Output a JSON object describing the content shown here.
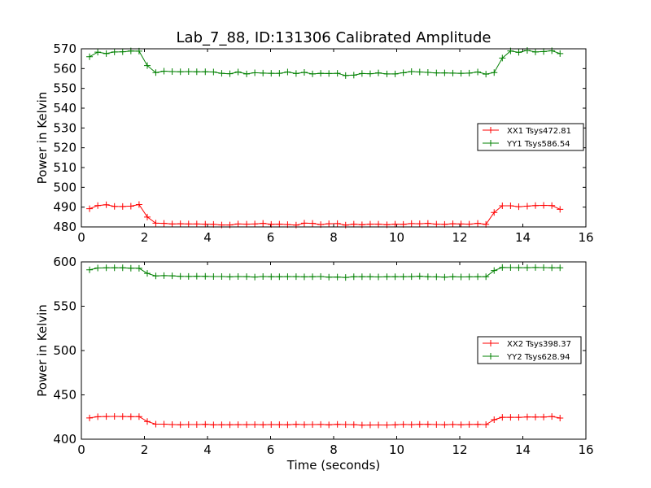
{
  "chart_data": [
    {
      "type": "line",
      "title": "Lab_7_88, ID:131306 Calibrated Amplitude",
      "xlabel": "",
      "ylabel": "Power in Kelvin",
      "xlim": [
        0,
        16
      ],
      "ylim": [
        480,
        570
      ],
      "xticks": [
        0,
        2,
        4,
        6,
        8,
        10,
        12,
        14,
        16
      ],
      "yticks": [
        480,
        490,
        500,
        510,
        520,
        530,
        540,
        550,
        560,
        570
      ],
      "grid": false,
      "legend_position": "right",
      "marker": "+",
      "x": [
        0.26,
        0.52,
        0.79,
        1.05,
        1.31,
        1.57,
        1.83,
        2.09,
        2.36,
        2.62,
        2.88,
        3.14,
        3.4,
        3.66,
        3.93,
        4.19,
        4.45,
        4.71,
        4.97,
        5.24,
        5.5,
        5.76,
        6.02,
        6.28,
        6.54,
        6.81,
        7.07,
        7.33,
        7.59,
        7.85,
        8.12,
        8.38,
        8.64,
        8.9,
        9.16,
        9.42,
        9.69,
        9.95,
        10.21,
        10.47,
        10.73,
        10.99,
        11.26,
        11.52,
        11.78,
        12.04,
        12.3,
        12.57,
        12.83,
        13.09,
        13.35,
        13.61,
        13.87,
        14.14,
        14.4,
        14.66,
        14.92,
        15.18
      ],
      "series": [
        {
          "name": "XX1 Tsys472.81",
          "color": "#ff0000",
          "values": [
            489.2,
            490.8,
            491.2,
            490.4,
            490.3,
            490.5,
            491.3,
            485.0,
            481.9,
            481.8,
            481.5,
            481.6,
            481.5,
            481.5,
            481.4,
            481.3,
            481.0,
            481.0,
            481.5,
            481.4,
            481.5,
            481.8,
            481.3,
            481.4,
            481.2,
            480.9,
            481.9,
            481.8,
            481.2,
            481.6,
            481.7,
            480.9,
            481.4,
            481.1,
            481.4,
            481.4,
            481.1,
            481.4,
            481.3,
            481.7,
            481.6,
            481.8,
            481.4,
            481.3,
            481.6,
            481.5,
            481.4,
            481.8,
            481.3,
            487.3,
            490.7,
            490.7,
            490.2,
            490.5,
            490.8,
            490.9,
            490.8,
            488.9
          ]
        },
        {
          "name": "YY1 Tsys586.54",
          "color": "#008000",
          "values": [
            566.0,
            568.3,
            567.6,
            568.4,
            568.5,
            568.9,
            568.8,
            561.5,
            558.0,
            558.7,
            558.5,
            558.4,
            558.5,
            558.4,
            558.4,
            558.3,
            557.6,
            557.4,
            558.3,
            557.3,
            557.9,
            557.7,
            557.6,
            557.6,
            558.3,
            557.5,
            558.1,
            557.3,
            557.6,
            557.5,
            557.6,
            556.5,
            556.7,
            557.5,
            557.4,
            557.8,
            557.3,
            557.3,
            557.9,
            558.5,
            558.3,
            558.1,
            557.8,
            557.8,
            557.7,
            557.6,
            557.7,
            558.3,
            557.2,
            558.0,
            565.3,
            568.9,
            568.2,
            569.2,
            568.4,
            568.6,
            569.0,
            567.6
          ]
        }
      ]
    },
    {
      "type": "line",
      "title": "",
      "xlabel": "Time (seconds)",
      "ylabel": "Power in Kelvin",
      "xlim": [
        0,
        16
      ],
      "ylim": [
        400,
        600
      ],
      "xticks": [
        0,
        2,
        4,
        6,
        8,
        10,
        12,
        14,
        16
      ],
      "yticks": [
        400,
        450,
        500,
        550,
        600
      ],
      "grid": false,
      "legend_position": "right",
      "marker": "+",
      "x": [
        0.26,
        0.52,
        0.79,
        1.05,
        1.31,
        1.57,
        1.83,
        2.09,
        2.36,
        2.62,
        2.88,
        3.14,
        3.4,
        3.66,
        3.93,
        4.19,
        4.45,
        4.71,
        4.97,
        5.24,
        5.5,
        5.76,
        6.02,
        6.28,
        6.54,
        6.81,
        7.07,
        7.33,
        7.59,
        7.85,
        8.12,
        8.38,
        8.64,
        8.9,
        9.16,
        9.42,
        9.69,
        9.95,
        10.21,
        10.47,
        10.73,
        10.99,
        11.26,
        11.52,
        11.78,
        12.04,
        12.3,
        12.57,
        12.83,
        13.09,
        13.35,
        13.61,
        13.87,
        14.14,
        14.4,
        14.66,
        14.92,
        15.18
      ],
      "series": [
        {
          "name": "XX2 Tsys398.37",
          "color": "#ff0000",
          "values": [
            424.0,
            425.3,
            425.6,
            425.7,
            425.6,
            425.4,
            425.5,
            420.0,
            417.0,
            417.0,
            416.5,
            416.3,
            416.5,
            416.5,
            416.8,
            416.2,
            416.3,
            416.3,
            416.4,
            416.4,
            416.5,
            416.3,
            416.5,
            416.4,
            416.3,
            416.7,
            416.4,
            416.5,
            416.6,
            416.2,
            416.8,
            416.5,
            416.4,
            415.9,
            416.0,
            416.1,
            416.0,
            416.2,
            416.6,
            416.4,
            416.7,
            416.7,
            416.5,
            416.3,
            416.6,
            416.3,
            416.6,
            416.7,
            416.5,
            422.0,
            424.7,
            424.7,
            424.6,
            425.1,
            425.0,
            425.0,
            425.6,
            423.9
          ]
        },
        {
          "name": "YY2 Tsys628.94",
          "color": "#008000",
          "values": [
            591.0,
            593.1,
            593.3,
            593.4,
            593.3,
            592.9,
            592.8,
            587.0,
            584.2,
            584.5,
            584.3,
            583.7,
            583.6,
            583.8,
            583.7,
            583.5,
            583.5,
            583.1,
            583.5,
            583.4,
            582.9,
            583.5,
            583.3,
            583.2,
            583.4,
            583.4,
            583.1,
            583.3,
            583.5,
            582.8,
            582.9,
            582.5,
            583.2,
            583.2,
            583.3,
            583.0,
            583.3,
            583.3,
            583.2,
            583.4,
            583.8,
            583.2,
            583.1,
            582.8,
            583.2,
            583.0,
            583.1,
            583.3,
            583.2,
            590.2,
            593.7,
            593.6,
            593.5,
            593.5,
            593.7,
            593.6,
            593.4,
            593.3
          ]
        }
      ]
    }
  ]
}
